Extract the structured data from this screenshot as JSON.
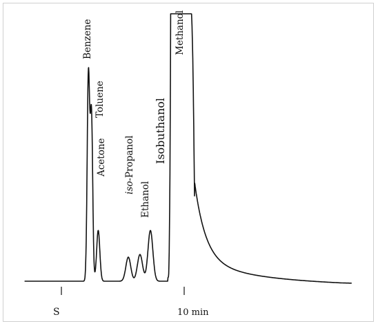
{
  "chart_data": {
    "type": "line",
    "title": "",
    "xlabel": "",
    "ylabel": "",
    "x_ticks": [
      {
        "label": "S",
        "value": 0
      },
      {
        "label": "10 min",
        "value": 10
      }
    ],
    "series": [
      {
        "peaks": [
          {
            "name": "Benzene",
            "time": 2.2,
            "height": 0.77
          },
          {
            "name": "Toluene",
            "time": 2.45,
            "height": 0.62
          },
          {
            "name": "Acetone",
            "time": 3.0,
            "height": 0.19
          },
          {
            "name": "iso-Propanol",
            "time": 5.45,
            "height": 0.09
          },
          {
            "name": "Ethanol",
            "time": 6.4,
            "height": 0.1
          },
          {
            "name": "Isobuthanol",
            "time": 7.25,
            "height": 0.19
          },
          {
            "name": "Methanol",
            "time": 8.95,
            "height": 1.0,
            "offscale": true
          }
        ]
      }
    ]
  }
}
